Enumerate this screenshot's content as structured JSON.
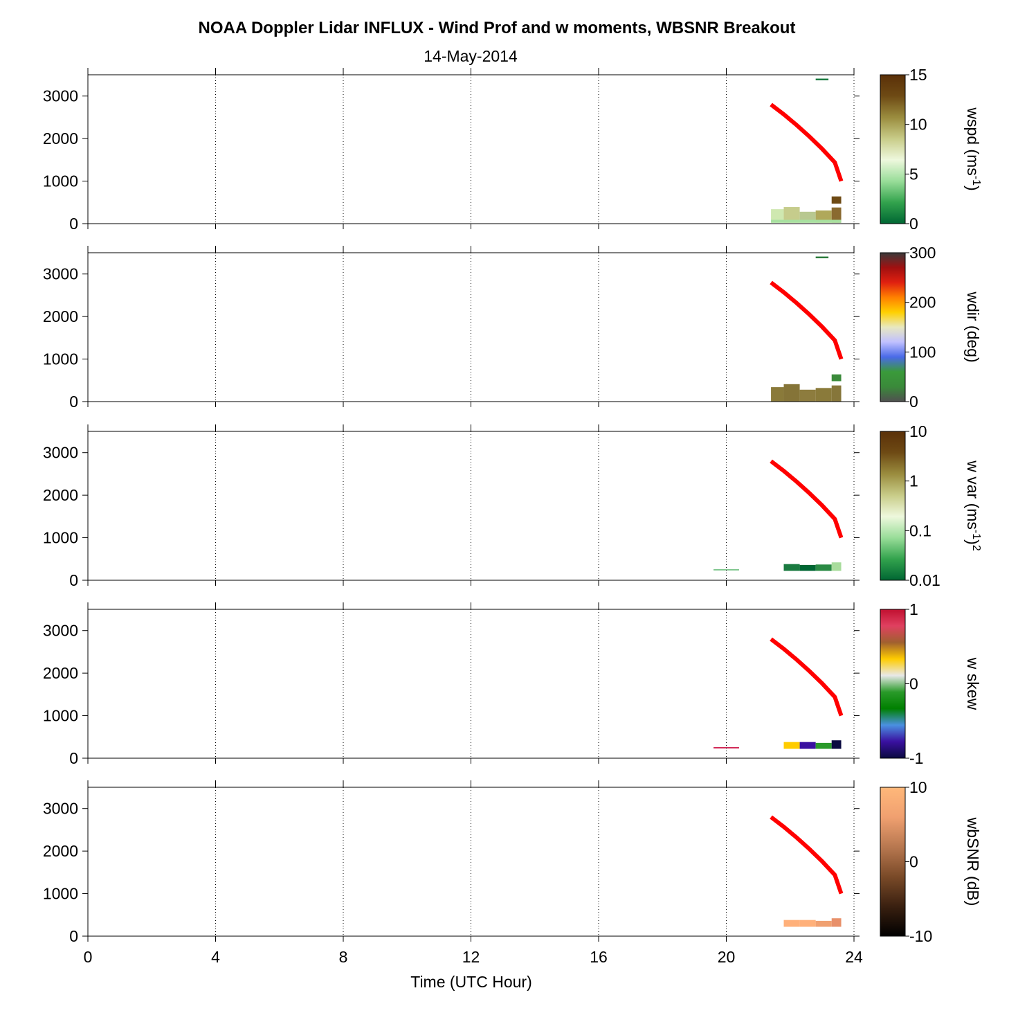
{
  "chart_data": {
    "type": "heatmap",
    "title": "NOAA Doppler Lidar INFLUX - Wind Prof and w moments, WBSNR Breakout",
    "subtitle": "14-May-2014",
    "xlabel": "Time (UTC Hour)",
    "xlim": [
      0,
      24
    ],
    "xticks": [
      0,
      4,
      8,
      12,
      16,
      20,
      24
    ],
    "ylim": [
      0,
      3500
    ],
    "yticks": [
      0,
      1000,
      2000,
      3000
    ],
    "grid": "vertical dotted",
    "overlay_line": {
      "color": "#ff0000",
      "x": [
        21.4,
        21.8,
        22.2,
        22.6,
        23.0,
        23.4,
        23.6
      ],
      "y": [
        2800,
        2570,
        2320,
        2050,
        1760,
        1440,
        1000
      ]
    },
    "panels": [
      {
        "key": "wspd",
        "label_main": "wspd (ms",
        "label_sup": "-1",
        "label_tail": ")",
        "label_sup2": "",
        "cticks": [
          "0",
          "5",
          "10",
          "15"
        ],
        "colormap": [
          "#006633",
          "#33a34d",
          "#99dd99",
          "#eef8dd",
          "#c8cc88",
          "#9a8c3e",
          "#6e4a14",
          "#5a3008"
        ],
        "cells": [
          {
            "t0": 21.4,
            "t1": 21.8,
            "z0": 20,
            "z1": 340,
            "color": "#cfe8b0"
          },
          {
            "t0": 21.8,
            "t1": 22.3,
            "z0": 20,
            "z1": 390,
            "color": "#c6cc8c"
          },
          {
            "t0": 22.3,
            "t1": 22.8,
            "z0": 20,
            "z1": 280,
            "color": "#b8c890"
          },
          {
            "t0": 22.8,
            "t1": 23.3,
            "z0": 20,
            "z1": 310,
            "color": "#b0a85a"
          },
          {
            "t0": 23.3,
            "t1": 23.6,
            "z0": 20,
            "z1": 380,
            "color": "#8a6a30"
          },
          {
            "t0": 21.4,
            "t1": 23.6,
            "z0": 20,
            "z1": 90,
            "color": "#a8e0a0"
          },
          {
            "t0": 23.3,
            "t1": 23.6,
            "z0": 470,
            "z1": 640,
            "color": "#6e4a14"
          },
          {
            "t0": 22.8,
            "t1": 23.2,
            "z0": 3370,
            "z1": 3410,
            "color": "#1a7a40"
          }
        ]
      },
      {
        "key": "wdir",
        "label_main": "wdir (deg)",
        "label_sup": "",
        "label_tail": "",
        "label_sup2": "",
        "cticks": [
          "0",
          "100",
          "200",
          "300"
        ],
        "colormap": [
          "#505050",
          "#3a8a3a",
          "#3a9a3a",
          "#4a6ae8",
          "#c0c0ff",
          "#e8e8c0",
          "#ffd000",
          "#ff8000",
          "#e02010",
          "#a01010",
          "#3a3a3a"
        ],
        "cells": [
          {
            "t0": 21.4,
            "t1": 21.8,
            "z0": 0,
            "z1": 340,
            "color": "#8a7a3a"
          },
          {
            "t0": 21.8,
            "t1": 22.3,
            "z0": 0,
            "z1": 410,
            "color": "#857438"
          },
          {
            "t0": 22.3,
            "t1": 22.8,
            "z0": 0,
            "z1": 280,
            "color": "#8d7c3e"
          },
          {
            "t0": 22.8,
            "t1": 23.3,
            "z0": 0,
            "z1": 320,
            "color": "#8a7a3a"
          },
          {
            "t0": 23.3,
            "t1": 23.6,
            "z0": 0,
            "z1": 380,
            "color": "#86763a"
          },
          {
            "t0": 23.3,
            "t1": 23.6,
            "z0": 480,
            "z1": 640,
            "color": "#3a8a3a"
          },
          {
            "t0": 22.8,
            "t1": 23.2,
            "z0": 3370,
            "z1": 3410,
            "color": "#2a7a3a"
          }
        ]
      },
      {
        "key": "wvar",
        "label_main": "w var (ms",
        "label_sup": "-1",
        "label_tail": ")",
        "label_sup2": "2",
        "cticks": [
          "0.01",
          "0.1",
          "1",
          "10"
        ],
        "colormap": [
          "#006633",
          "#33a34d",
          "#99dd99",
          "#eef8dd",
          "#c8cc88",
          "#9a8c3e",
          "#6e4a14",
          "#5a3008"
        ],
        "cells": [
          {
            "t0": 21.8,
            "t1": 22.3,
            "z0": 220,
            "z1": 380,
            "color": "#1a7a40"
          },
          {
            "t0": 22.3,
            "t1": 22.8,
            "z0": 220,
            "z1": 360,
            "color": "#006633"
          },
          {
            "t0": 22.8,
            "t1": 23.3,
            "z0": 220,
            "z1": 370,
            "color": "#2a8a44"
          },
          {
            "t0": 23.3,
            "t1": 23.6,
            "z0": 220,
            "z1": 420,
            "color": "#a8dc9c"
          },
          {
            "t0": 19.6,
            "t1": 20.4,
            "z0": 230,
            "z1": 260,
            "color": "#7ac48a"
          }
        ]
      },
      {
        "key": "wskew",
        "label_main": "w skew",
        "label_sup": "",
        "label_tail": "",
        "label_sup2": "",
        "cticks": [
          "-1",
          "0",
          "1"
        ],
        "colormap": [
          "#0a0a40",
          "#3a10a0",
          "#4a90e0",
          "#008000",
          "#2a9a2a",
          "#e8e8e8",
          "#ffcc00",
          "#a06030",
          "#e04060",
          "#c01030"
        ],
        "cells": [
          {
            "t0": 21.8,
            "t1": 22.3,
            "z0": 220,
            "z1": 380,
            "color": "#ffcc00"
          },
          {
            "t0": 22.3,
            "t1": 22.8,
            "z0": 220,
            "z1": 380,
            "color": "#3a10a0"
          },
          {
            "t0": 22.8,
            "t1": 23.3,
            "z0": 220,
            "z1": 360,
            "color": "#2a9a2a"
          },
          {
            "t0": 23.3,
            "t1": 23.6,
            "z0": 220,
            "z1": 420,
            "color": "#0a0a40"
          },
          {
            "t0": 19.6,
            "t1": 20.4,
            "z0": 230,
            "z1": 260,
            "color": "#d02050"
          }
        ]
      },
      {
        "key": "wbsnr",
        "label_main": "wbSNR (dB)",
        "label_sup": "",
        "label_tail": "",
        "label_sup2": "",
        "cticks": [
          "-10",
          "0",
          "10"
        ],
        "colormap": [
          "#000000",
          "#3a2010",
          "#7a4a28",
          "#b87850",
          "#f0a070",
          "#ffb87a"
        ],
        "cells": [
          {
            "t0": 21.8,
            "t1": 22.3,
            "z0": 220,
            "z1": 380,
            "color": "#ffb07a"
          },
          {
            "t0": 22.3,
            "t1": 22.8,
            "z0": 220,
            "z1": 380,
            "color": "#ffb07a"
          },
          {
            "t0": 22.8,
            "t1": 23.3,
            "z0": 220,
            "z1": 360,
            "color": "#f0a070"
          },
          {
            "t0": 23.3,
            "t1": 23.6,
            "z0": 220,
            "z1": 420,
            "color": "#e8906a"
          }
        ]
      }
    ]
  }
}
